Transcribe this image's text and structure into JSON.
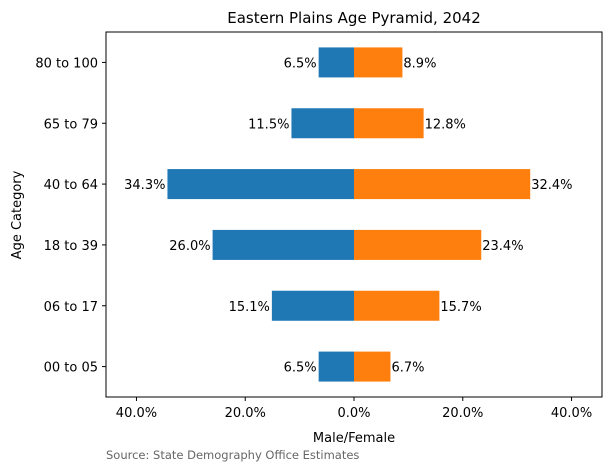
{
  "chart_data": {
    "type": "bar",
    "orientation": "horizontal",
    "title": "Eastern Plains Age Pyramid, 2042",
    "xlabel": "Male/Female",
    "ylabel": "Age Category",
    "source": "Source: State Demography Office Estimates",
    "categories": [
      "00 to 05",
      "06 to 17",
      "18 to 39",
      "40 to 64",
      "65 to 79",
      "80 to 100"
    ],
    "series": [
      {
        "values": [
          -6.5,
          -15.1,
          -26.0,
          -34.3,
          -11.5,
          -6.5
        ],
        "color": "#1f77b4"
      },
      {
        "values": [
          6.7,
          15.7,
          23.4,
          32.4,
          12.8,
          8.9
        ],
        "color": "#ff7f0e"
      }
    ],
    "data_labels": {
      "male": [
        "6.5%",
        "15.1%",
        "26.0%",
        "34.3%",
        "11.5%",
        "6.5%"
      ],
      "female": [
        "6.7%",
        "15.7%",
        "23.4%",
        "32.4%",
        "12.8%",
        "8.9%"
      ]
    },
    "xlim": [
      -45.6,
      45.6
    ],
    "xticks": [
      -40,
      -20,
      0,
      20,
      40
    ],
    "xtick_labels": [
      "40.0%",
      "20.0%",
      "0.0%",
      "20.0%",
      "40.0%"
    ],
    "grid": false
  }
}
